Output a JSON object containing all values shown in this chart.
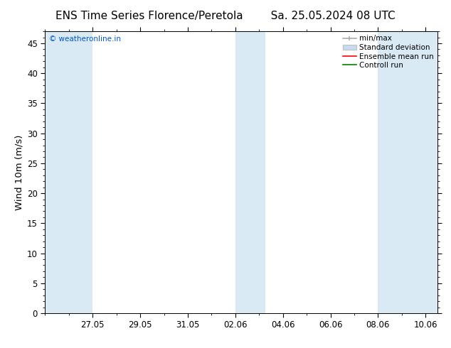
{
  "title_left": "ENS Time Series Florence/Peretola",
  "title_right": "Sa. 25.05.2024 08 UTC",
  "ylabel": "Wind 10m (m/s)",
  "ylim": [
    0,
    47
  ],
  "yticks": [
    0,
    5,
    10,
    15,
    20,
    25,
    30,
    35,
    40,
    45
  ],
  "xtick_labels": [
    "27.05",
    "29.05",
    "31.05",
    "02.06",
    "04.06",
    "06.06",
    "08.06",
    "10.06"
  ],
  "bg_color": "#ffffff",
  "plot_bg_color": "#ffffff",
  "band_color": "#daeaf5",
  "band1_x0": 0.0,
  "band1_x1": 2.0,
  "band2_x0": 8.0,
  "band2_x1": 9.25,
  "band3_x0": 14.0,
  "band3_x1": 16.5,
  "x_min": 0.0,
  "x_max": 16.5,
  "legend_labels": [
    "min/max",
    "Standard deviation",
    "Ensemble mean run",
    "Controll run"
  ],
  "legend_colors_line": [
    "#999999",
    "#c8daf0",
    "#ff0000",
    "#008000"
  ],
  "watermark_text": "© weatheronline.in",
  "watermark_color": "#0055cc",
  "title_fontsize": 11,
  "tick_fontsize": 8.5,
  "ylabel_fontsize": 9.5
}
